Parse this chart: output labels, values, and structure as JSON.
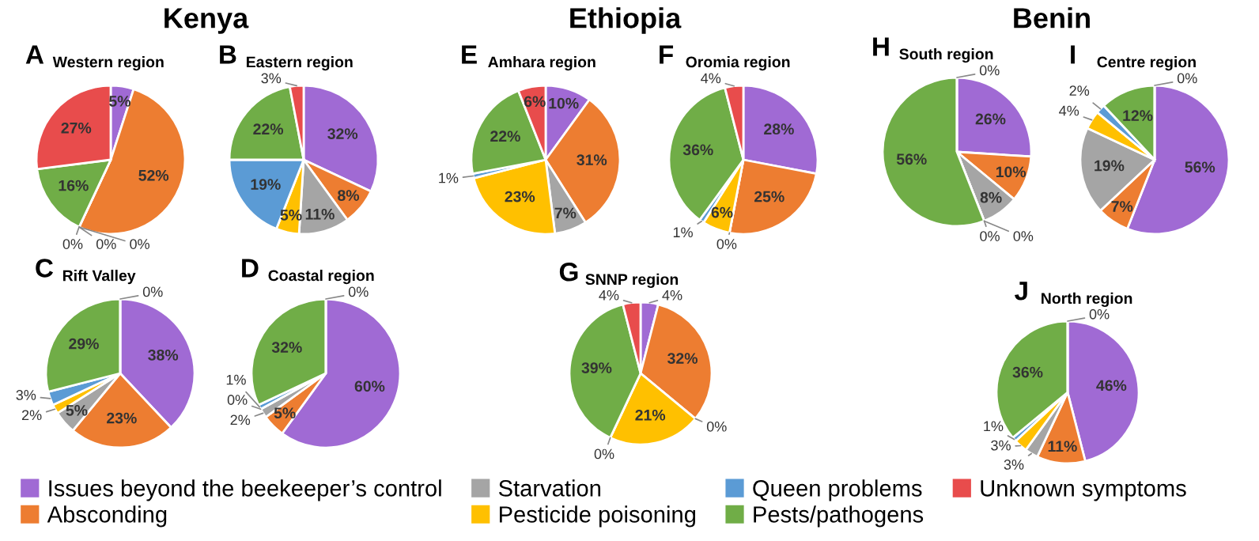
{
  "chart_data": [
    {
      "type": "pie",
      "title": "A",
      "subtitle": "Western region",
      "annotations": [
        "Kenya"
      ],
      "legend": "bottom",
      "categories": [
        "Issues beyond the beekeeper’s control",
        "Absconding",
        "Starvation",
        "Pesticide poisoning",
        "Queen problems",
        "Pests/pathogens",
        "Unknown symptoms"
      ],
      "colors": [
        "#a06ad4",
        "#ed7d31",
        "#a5a5a5",
        "#ffc000",
        "#5b9bd5",
        "#70ad47",
        "#e84c4c"
      ],
      "values": [
        5,
        52,
        0,
        0,
        0,
        16,
        27
      ],
      "value_labels": [
        "5%",
        "52%",
        "0%",
        "0%",
        "0%",
        "16%",
        "27%"
      ]
    },
    {
      "type": "pie",
      "title": "B",
      "subtitle": "Eastern region",
      "categories": [
        null,
        null,
        null,
        null,
        null,
        null,
        null
      ],
      "colors": [
        "#a06ad4",
        "#ed7d31",
        "#a5a5a5",
        "#ffc000",
        "#5b9bd5",
        "#70ad47",
        "#e84c4c"
      ],
      "values": [
        32,
        8,
        11,
        5,
        19,
        22,
        3
      ],
      "value_labels": [
        "32%",
        "8%",
        "11%",
        "5%",
        "19%",
        "22%",
        "3%"
      ]
    },
    {
      "type": "pie",
      "title": "C",
      "subtitle": "Rift Valley",
      "categories": [
        null,
        null,
        null,
        null,
        null,
        null,
        null
      ],
      "colors": [
        "#a06ad4",
        "#ed7d31",
        "#a5a5a5",
        "#ffc000",
        "#5b9bd5",
        "#70ad47",
        "#e84c4c"
      ],
      "values": [
        38,
        23,
        5,
        2,
        3,
        29,
        0
      ],
      "value_labels": [
        "38%",
        "23%",
        "5%",
        "2%",
        "3%",
        "29%",
        "0%"
      ]
    },
    {
      "type": "pie",
      "title": "D",
      "subtitle": "Coastal region",
      "categories": [
        null,
        null,
        null,
        null,
        null,
        null,
        null
      ],
      "colors": [
        "#a06ad4",
        "#ed7d31",
        "#a5a5a5",
        "#ffc000",
        "#5b9bd5",
        "#70ad47",
        "#e84c4c"
      ],
      "values": [
        60,
        5,
        2,
        0,
        1,
        32,
        0
      ],
      "value_labels": [
        "60%",
        "5%",
        "2%",
        "0%",
        "1%",
        "32%",
        "0%"
      ]
    },
    {
      "type": "pie",
      "title": "E",
      "subtitle": "Amhara region",
      "annotations": [
        "Ethiopia"
      ],
      "categories": [
        null,
        null,
        null,
        null,
        null,
        null,
        null
      ],
      "colors": [
        "#a06ad4",
        "#ed7d31",
        "#a5a5a5",
        "#ffc000",
        "#5b9bd5",
        "#70ad47",
        "#e84c4c"
      ],
      "values": [
        10,
        31,
        7,
        23,
        1,
        22,
        6
      ],
      "value_labels": [
        "10%",
        "31%",
        "7%",
        "23%",
        "1%",
        "22%",
        "6%"
      ]
    },
    {
      "type": "pie",
      "title": "F",
      "subtitle": "Oromia region",
      "categories": [
        null,
        null,
        null,
        null,
        null,
        null,
        null
      ],
      "colors": [
        "#a06ad4",
        "#ed7d31",
        "#a5a5a5",
        "#ffc000",
        "#5b9bd5",
        "#70ad47",
        "#e84c4c"
      ],
      "values": [
        28,
        25,
        0,
        6,
        1,
        36,
        4
      ],
      "value_labels": [
        "28%",
        "25%",
        "0%",
        "6%",
        "1%",
        "36%",
        "4%"
      ]
    },
    {
      "type": "pie",
      "title": "G",
      "subtitle": "SNNP region",
      "categories": [
        null,
        null,
        null,
        null,
        null,
        null,
        null
      ],
      "colors": [
        "#a06ad4",
        "#ed7d31",
        "#a5a5a5",
        "#ffc000",
        "#5b9bd5",
        "#70ad47",
        "#e84c4c"
      ],
      "values": [
        4,
        32,
        0,
        21,
        0,
        39,
        4
      ],
      "value_labels": [
        "4%",
        "32%",
        "0%",
        "21%",
        "0%",
        "39%",
        "4%"
      ]
    },
    {
      "type": "pie",
      "title": "H",
      "subtitle": "South region",
      "annotations": [
        "Benin"
      ],
      "categories": [
        null,
        null,
        null,
        null,
        null,
        null,
        null
      ],
      "colors": [
        "#a06ad4",
        "#ed7d31",
        "#a5a5a5",
        "#ffc000",
        "#5b9bd5",
        "#70ad47",
        "#e84c4c"
      ],
      "values": [
        26,
        10,
        8,
        0,
        0,
        56,
        0
      ],
      "value_labels": [
        "26%",
        "10%",
        "8%",
        "0%",
        "0%",
        "56%",
        "0%"
      ]
    },
    {
      "type": "pie",
      "title": "I",
      "subtitle": "Centre region",
      "categories": [
        null,
        null,
        null,
        null,
        null,
        null,
        null
      ],
      "colors": [
        "#a06ad4",
        "#ed7d31",
        "#a5a5a5",
        "#ffc000",
        "#5b9bd5",
        "#70ad47",
        "#e84c4c"
      ],
      "values": [
        56,
        7,
        19,
        4,
        2,
        12,
        0
      ],
      "value_labels": [
        "56%",
        "7%",
        "19%",
        "4%",
        "2%",
        "12%",
        "0%"
      ]
    },
    {
      "type": "pie",
      "title": "J",
      "subtitle": "North region",
      "categories": [
        null,
        null,
        null,
        null,
        null,
        null,
        null
      ],
      "colors": [
        "#a06ad4",
        "#ed7d31",
        "#a5a5a5",
        "#ffc000",
        "#5b9bd5",
        "#70ad47",
        "#e84c4c"
      ],
      "values": [
        46,
        11,
        3,
        3,
        1,
        36,
        0
      ],
      "value_labels": [
        "46%",
        "11%",
        "3%",
        "3%",
        "1%",
        "36%",
        "0%"
      ]
    }
  ]
}
